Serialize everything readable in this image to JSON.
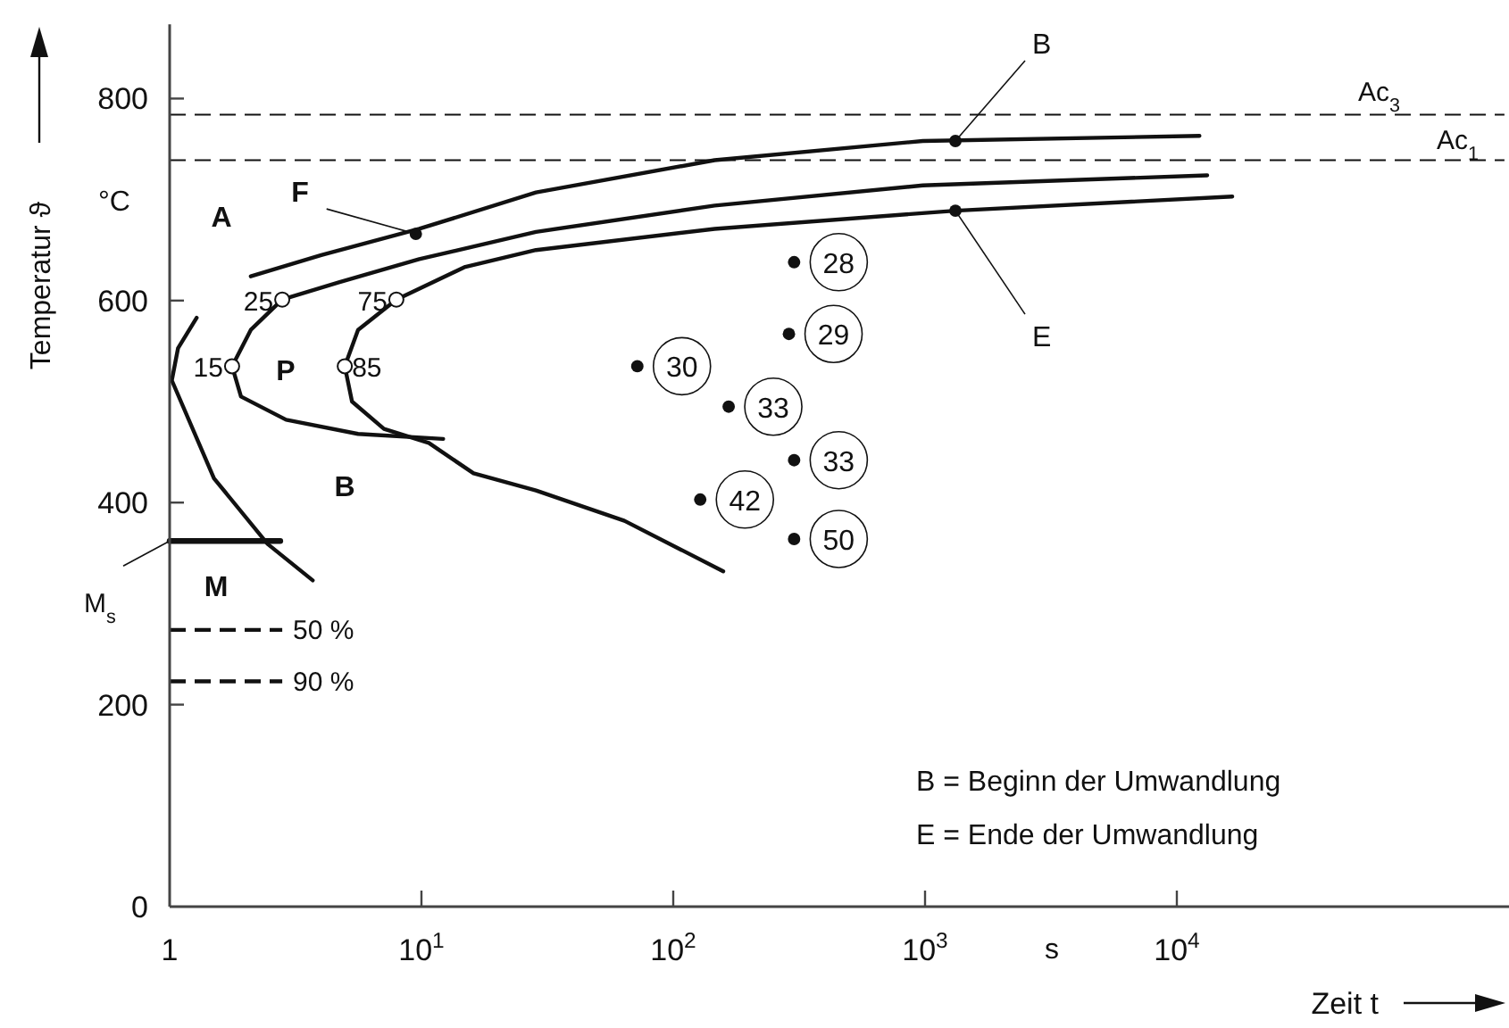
{
  "chart_data": {
    "type": "line",
    "xlabel": "Zeit t",
    "ylabel": "Temperatur ϑ",
    "log": "x",
    "xlim": [
      1,
      200000
    ],
    "ylim": [
      0,
      870
    ],
    "xticks": [
      1,
      {
        "value": 10,
        "label": "10$^{1}$"
      },
      {
        "value": 100,
        "label": "10$^{2}$"
      },
      {
        "value": 1000,
        "label": "10$^{3}$"
      },
      {
        "value": 10000,
        "label": "10$^{4}$"
      }
    ],
    "yticks": [
      0,
      200,
      400,
      600,
      800
    ],
    "grid": false,
    "series": [
      {
        "color": "#111111",
        "x": [
          12300,
          980,
          146,
          28.5,
          9.8,
          4.0,
          2.1,
          1.6,
          1.28,
          1.08,
          1.02,
          1.5,
          2.45,
          3.7
        ],
        "values": [
          763,
          758,
          739,
          707,
          671,
          645,
          624,
          null,
          583,
          553,
          521,
          424,
          359,
          323
        ]
      },
      {
        "color": "#111111",
        "x": [
          13200,
          980,
          146,
          28.5,
          9.8,
          4.7,
          2.8,
          2.1,
          1.77,
          1.92,
          2.9,
          5.6,
          12.2
        ],
        "values": [
          724,
          714,
          694,
          668,
          641,
          618,
          601,
          571,
          535,
          505,
          482,
          468,
          463
        ]
      },
      {
        "color": "#111111",
        "x": [
          16600,
          1320,
          146,
          28.5,
          14.8,
          7.95,
          5.6,
          4.96,
          5.3,
          7.1,
          10.7,
          16.1,
          28.5,
          64,
          158
        ],
        "values": [
          703,
          689,
          671,
          650,
          633,
          601,
          571,
          535,
          500,
          473,
          459,
          429,
          412,
          382,
          332
        ]
      },
      {
        "type": "line",
        "name": "M$_{s}$",
        "color": "#111111",
        "line_style": "solid",
        "x": [
          1,
          2.75
        ],
        "values": [
          362,
          362
        ]
      },
      {
        "type": "line",
        "name": "50 %",
        "color": "#111111",
        "line_style": "dashed",
        "x": [
          1,
          2.8
        ],
        "values": [
          274,
          274
        ]
      },
      {
        "type": "line",
        "name": "90 %",
        "color": "#111111",
        "line_style": "dashed",
        "x": [
          1,
          2.8
        ],
        "values": [
          223,
          223
        ]
      },
      {
        "type": "scatter",
        "marker": "circle",
        "color": "#ffffff",
        "x": [
          2.8,
          1.77,
          7.95,
          4.96
        ],
        "values": [
          601,
          535,
          601,
          535
        ]
      },
      {
        "type": "scatter",
        "marker": "circle",
        "color": "#111111",
        "x": [
          302,
          288,
          72,
          166,
          302,
          128,
          302
        ],
        "values": [
          638,
          567,
          535,
          495,
          442,
          403,
          364
        ]
      },
      {
        "type": "scatter",
        "marker": "circle",
        "color": "#111111",
        "x": [
          9.5,
          1320,
          1320
        ],
        "values": [
          666,
          758,
          689
        ]
      }
    ],
    "ref_lines": [
      {
        "axis": "y",
        "value": 784,
        "label": "Ac$_{3}$",
        "line_style": "dashed"
      },
      {
        "axis": "y",
        "value": 739,
        "label": "Ac$_{1}$",
        "line_style": "dashed"
      }
    ],
    "annotations": [
      "A",
      "P",
      "B",
      "M",
      {
        "text": "F",
        "x": 9.5,
        "y": 666
      },
      {
        "text": "B",
        "x": 1320,
        "y": 758
      },
      {
        "text": "E",
        "x": 1320,
        "y": 689
      },
      {
        "text": "25",
        "x": 2.8,
        "y": 601
      },
      {
        "text": "15",
        "x": 1.77,
        "y": 535
      },
      {
        "text": "75",
        "x": 7.95,
        "y": 601
      },
      {
        "text": "85",
        "x": 4.96,
        "y": 535
      },
      {
        "text": "28",
        "x": 302,
        "y": 638
      },
      {
        "text": "29",
        "x": 288,
        "y": 567
      },
      {
        "text": "30",
        "x": 72,
        "y": 535
      },
      {
        "text": "33",
        "x": 166,
        "y": 495
      },
      {
        "text": "33",
        "x": 302,
        "y": 442
      },
      {
        "text": "42",
        "x": 128,
        "y": 403
      },
      {
        "text": "50",
        "x": 302,
        "y": 364
      },
      "°C",
      "s",
      "B = Beginn der Umwandlung",
      "E = Ende der Umwandlung"
    ]
  }
}
